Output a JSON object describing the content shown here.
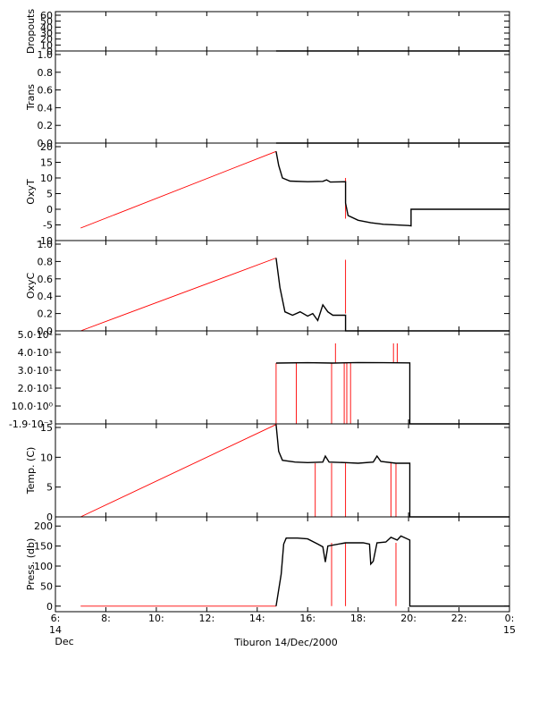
{
  "chart_data": {
    "type": "line",
    "caption": "Tiburon 14/Dec/2000",
    "x_range": [
      6,
      24
    ],
    "x_ticks": [
      {
        "t": 6,
        "line1": "6:",
        "line2": "14",
        "line3": "Dec"
      },
      {
        "t": 8,
        "line1": "8:"
      },
      {
        "t": 10,
        "line1": "10:"
      },
      {
        "t": 12,
        "line1": "12:"
      },
      {
        "t": 14,
        "line1": "14:"
      },
      {
        "t": 16,
        "line1": "16:"
      },
      {
        "t": 18,
        "line1": "18:"
      },
      {
        "t": 20,
        "line1": "20:"
      },
      {
        "t": 22,
        "line1": "22:"
      },
      {
        "t": 24,
        "line1": "0:",
        "line2": "15"
      }
    ],
    "colors": {
      "interpolated": "#ff0000",
      "measured": "#000000"
    },
    "panels": [
      {
        "id": "dropouts",
        "ylabel": "Dropouts",
        "ylim": [
          0,
          60
        ],
        "ticks": [
          {
            "v": 0,
            "label": "0"
          },
          {
            "v": 10,
            "label": "10"
          },
          {
            "v": 20,
            "label": "20"
          },
          {
            "v": 30,
            "label": "30"
          },
          {
            "v": 40,
            "label": "40"
          },
          {
            "v": 50,
            "label": "50"
          },
          {
            "v": 60,
            "label": "60"
          }
        ],
        "series": [
          {
            "color": "red",
            "points": [
              [
                7,
                0
              ],
              [
                14.75,
                0
              ]
            ]
          },
          {
            "color": "black",
            "points": [
              [
                14.75,
                0
              ],
              [
                24,
                0
              ]
            ]
          }
        ]
      },
      {
        "id": "trans",
        "ylabel": "Trans",
        "ylim": [
          0,
          1
        ],
        "ticks": [
          {
            "v": 0,
            "label": "0.0"
          },
          {
            "v": 0.2,
            "label": "0.2"
          },
          {
            "v": 0.4,
            "label": "0.4"
          },
          {
            "v": 0.6,
            "label": "0.6"
          },
          {
            "v": 0.8,
            "label": "0.8"
          },
          {
            "v": 1.0,
            "label": "1.0"
          }
        ],
        "series": [
          {
            "color": "red",
            "points": [
              [
                7,
                0
              ],
              [
                14.75,
                0
              ]
            ]
          },
          {
            "color": "black",
            "points": [
              [
                14.75,
                0
              ],
              [
                24,
                0
              ]
            ]
          }
        ]
      },
      {
        "id": "oxyt",
        "ylabel": "OxyT",
        "ylim": [
          -10,
          20
        ],
        "ticks": [
          {
            "v": -10,
            "label": "-10"
          },
          {
            "v": -5,
            "label": "-5"
          },
          {
            "v": 0,
            "label": "0"
          },
          {
            "v": 5,
            "label": "5"
          },
          {
            "v": 10,
            "label": "10"
          },
          {
            "v": 15,
            "label": "15"
          },
          {
            "v": 20,
            "label": "20"
          }
        ],
        "series": [
          {
            "color": "red",
            "points": [
              [
                7,
                -6
              ],
              [
                14.75,
                18.5
              ]
            ]
          },
          {
            "color": "red",
            "points": [
              [
                17.5,
                -3
              ],
              [
                17.5,
                10
              ]
            ]
          },
          {
            "color": "black",
            "points": [
              [
                14.75,
                18.5
              ],
              [
                14.85,
                14
              ],
              [
                15.0,
                10
              ],
              [
                15.3,
                9
              ],
              [
                16.0,
                8.8
              ],
              [
                16.6,
                8.9
              ],
              [
                16.75,
                9.4
              ],
              [
                16.9,
                8.7
              ],
              [
                17.5,
                8.8
              ],
              [
                17.5,
                2
              ],
              [
                17.6,
                -2
              ],
              [
                18.0,
                -3.5
              ],
              [
                18.5,
                -4.3
              ],
              [
                19.0,
                -4.8
              ],
              [
                20.0,
                -5.2
              ],
              [
                20.1,
                -5.3
              ],
              [
                20.1,
                0
              ],
              [
                24,
                0
              ]
            ]
          }
        ]
      },
      {
        "id": "oxyc",
        "ylabel": "OxyC",
        "ylim": [
          0,
          1
        ],
        "ticks": [
          {
            "v": 0,
            "label": "0.0"
          },
          {
            "v": 0.2,
            "label": "0.2"
          },
          {
            "v": 0.4,
            "label": "0.4"
          },
          {
            "v": 0.6,
            "label": "0.6"
          },
          {
            "v": 0.8,
            "label": "0.8"
          },
          {
            "v": 1.0,
            "label": "1.0"
          }
        ],
        "series": [
          {
            "color": "red",
            "points": [
              [
                7,
                0
              ],
              [
                14.75,
                0.84
              ]
            ]
          },
          {
            "color": "red",
            "points": [
              [
                17.5,
                0.2
              ],
              [
                17.5,
                0.82
              ]
            ]
          },
          {
            "color": "black",
            "points": [
              [
                14.75,
                0.84
              ],
              [
                14.9,
                0.5
              ],
              [
                15.1,
                0.22
              ],
              [
                15.4,
                0.18
              ],
              [
                15.7,
                0.22
              ],
              [
                16.0,
                0.17
              ],
              [
                16.2,
                0.2
              ],
              [
                16.4,
                0.12
              ],
              [
                16.6,
                0.3
              ],
              [
                16.8,
                0.22
              ],
              [
                17.0,
                0.18
              ],
              [
                17.5,
                0.18
              ],
              [
                17.5,
                0
              ],
              [
                24,
                0
              ]
            ]
          }
        ]
      },
      {
        "id": "sal",
        "ylabel": "",
        "ylim": [
          -0.0019,
          50
        ],
        "ticks": [
          {
            "v": -0.0019,
            "label": "-1.9·10⁻³"
          },
          {
            "v": 10,
            "label": "10.0·10⁰"
          },
          {
            "v": 20,
            "label": "2.0·10¹"
          },
          {
            "v": 30,
            "label": "3.0·10¹"
          },
          {
            "v": 40,
            "label": "4.0·10¹"
          },
          {
            "v": 50,
            "label": "5.0·10¹"
          }
        ],
        "series": [
          {
            "color": "red",
            "points": [
              [
                7,
                0
              ],
              [
                14.75,
                0
              ]
            ]
          },
          {
            "color": "red",
            "points": [
              [
                14.75,
                0
              ],
              [
                14.75,
                34
              ]
            ]
          },
          {
            "color": "red",
            "points": [
              [
                15.55,
                0
              ],
              [
                15.55,
                34
              ]
            ]
          },
          {
            "color": "red",
            "points": [
              [
                16.95,
                0
              ],
              [
                16.95,
                34
              ]
            ]
          },
          {
            "color": "red",
            "points": [
              [
                17.1,
                34
              ],
              [
                17.1,
                45
              ]
            ]
          },
          {
            "color": "red",
            "points": [
              [
                17.45,
                0
              ],
              [
                17.45,
                34
              ]
            ]
          },
          {
            "color": "red",
            "points": [
              [
                17.55,
                0
              ],
              [
                17.55,
                34
              ]
            ]
          },
          {
            "color": "red",
            "points": [
              [
                17.7,
                0
              ],
              [
                17.7,
                34
              ]
            ]
          },
          {
            "color": "red",
            "points": [
              [
                19.4,
                34
              ],
              [
                19.4,
                45
              ]
            ]
          },
          {
            "color": "red",
            "points": [
              [
                19.55,
                34
              ],
              [
                19.55,
                45
              ]
            ]
          },
          {
            "color": "black",
            "points": [
              [
                14.75,
                34
              ],
              [
                16.0,
                34.2
              ],
              [
                17.0,
                34.0
              ],
              [
                18.0,
                34.3
              ],
              [
                19.0,
                34.2
              ],
              [
                20.0,
                34.1
              ],
              [
                20.05,
                34.1
              ],
              [
                20.05,
                0
              ],
              [
                24,
                0
              ]
            ]
          }
        ]
      },
      {
        "id": "temp",
        "ylabel": "Temp. (C)",
        "ylim": [
          0,
          15
        ],
        "ticks": [
          {
            "v": 0,
            "label": "0"
          },
          {
            "v": 5,
            "label": "5"
          },
          {
            "v": 10,
            "label": "10"
          },
          {
            "v": 15,
            "label": "15"
          }
        ],
        "series": [
          {
            "color": "red",
            "points": [
              [
                7,
                0
              ],
              [
                14.75,
                15.5
              ]
            ]
          },
          {
            "color": "red",
            "points": [
              [
                16.3,
                0
              ],
              [
                16.3,
                9
              ]
            ]
          },
          {
            "color": "red",
            "points": [
              [
                16.95,
                0
              ],
              [
                16.95,
                9
              ]
            ]
          },
          {
            "color": "red",
            "points": [
              [
                17.5,
                0
              ],
              [
                17.5,
                9
              ]
            ]
          },
          {
            "color": "red",
            "points": [
              [
                19.3,
                0
              ],
              [
                19.3,
                9
              ]
            ]
          },
          {
            "color": "red",
            "points": [
              [
                19.5,
                0
              ],
              [
                19.5,
                9
              ]
            ]
          },
          {
            "color": "black",
            "points": [
              [
                14.75,
                15.5
              ],
              [
                14.85,
                11
              ],
              [
                15.0,
                9.5
              ],
              [
                15.5,
                9.2
              ],
              [
                16.0,
                9.1
              ],
              [
                16.6,
                9.2
              ],
              [
                16.7,
                10.2
              ],
              [
                16.85,
                9.2
              ],
              [
                17.5,
                9.1
              ],
              [
                18.0,
                9.0
              ],
              [
                18.6,
                9.2
              ],
              [
                18.75,
                10.2
              ],
              [
                18.9,
                9.3
              ],
              [
                19.5,
                9.0
              ],
              [
                20.05,
                9.0
              ],
              [
                20.05,
                0
              ],
              [
                24,
                0
              ]
            ]
          }
        ]
      },
      {
        "id": "press",
        "ylabel": "Press. (db)",
        "ylim": [
          -5,
          205
        ],
        "ticks": [
          {
            "v": 0,
            "label": "0"
          },
          {
            "v": 50,
            "label": "50"
          },
          {
            "v": 100,
            "label": "100"
          },
          {
            "v": 150,
            "label": "150"
          },
          {
            "v": 200,
            "label": "200"
          }
        ],
        "series": [
          {
            "color": "red",
            "points": [
              [
                7,
                0
              ],
              [
                14.75,
                0
              ]
            ]
          },
          {
            "color": "red",
            "points": [
              [
                16.95,
                0
              ],
              [
                16.95,
                158
              ]
            ]
          },
          {
            "color": "red",
            "points": [
              [
                17.5,
                0
              ],
              [
                17.5,
                158
              ]
            ]
          },
          {
            "color": "red",
            "points": [
              [
                19.5,
                0
              ],
              [
                19.5,
                158
              ]
            ]
          },
          {
            "color": "black",
            "points": [
              [
                14.75,
                0
              ],
              [
                14.95,
                80
              ],
              [
                15.05,
                155
              ],
              [
                15.15,
                170
              ],
              [
                15.6,
                170
              ],
              [
                16.0,
                168
              ],
              [
                16.4,
                155
              ],
              [
                16.6,
                148
              ],
              [
                16.7,
                110
              ],
              [
                16.8,
                150
              ],
              [
                17.5,
                158
              ],
              [
                18.2,
                158
              ],
              [
                18.45,
                155
              ],
              [
                18.5,
                105
              ],
              [
                18.6,
                112
              ],
              [
                18.75,
                158
              ],
              [
                19.1,
                160
              ],
              [
                19.3,
                172
              ],
              [
                19.55,
                165
              ],
              [
                19.7,
                175
              ],
              [
                20.05,
                165
              ],
              [
                20.05,
                0
              ],
              [
                24,
                0
              ]
            ]
          }
        ]
      }
    ]
  }
}
